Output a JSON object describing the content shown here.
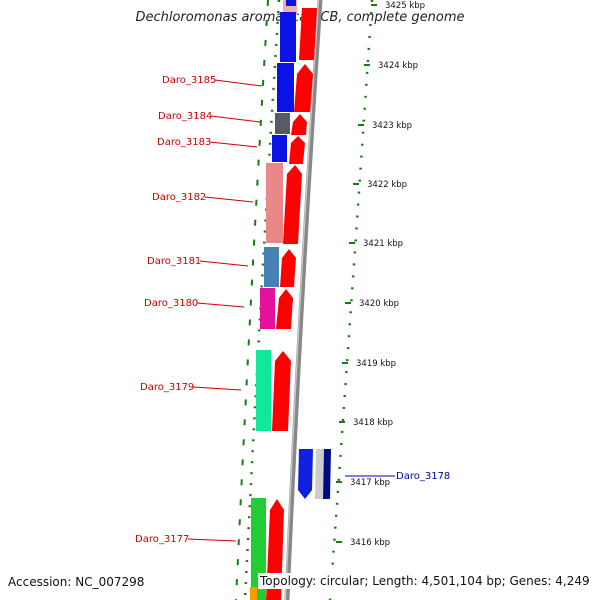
{
  "title": "Dechloromonas aromatica RCB, complete genome",
  "footer": {
    "accession": "Accession: NC_007298",
    "topology": "Topology: circular; Length: 4,501,104 bp; Genes: 4,249"
  },
  "scale_labels": [
    "3425 kbp",
    "3424 kbp",
    "3423 kbp",
    "3422 kbp",
    "3421 kbp",
    "3420 kbp",
    "3419 kbp",
    "3418 kbp",
    "3417 kbp",
    "3416 kbp"
  ],
  "genes": [
    {
      "label": "Daro_3185",
      "strand": "left",
      "color": "#0a12e6"
    },
    {
      "label": "Daro_3184",
      "strand": "left",
      "color": "#5a5a66"
    },
    {
      "label": "Daro_3183",
      "strand": "left",
      "color": "#0a12e6"
    },
    {
      "label": "Daro_3182",
      "strand": "left",
      "color": "#e88888"
    },
    {
      "label": "Daro_3181",
      "strand": "left",
      "color": "#4682b4"
    },
    {
      "label": "Daro_3180",
      "strand": "left",
      "color": "#e6119a"
    },
    {
      "label": "Daro_3179",
      "strand": "left",
      "color": "#11e89a"
    },
    {
      "label": "Daro_3178",
      "strand": "right",
      "color": "#1020e0"
    },
    {
      "label": "Daro_3177",
      "strand": "left",
      "color": "#22cc33"
    }
  ],
  "colors": {
    "left_label": "#cc0000",
    "right_label": "#0000aa",
    "cds": "#ff0000",
    "backbone": "#888888",
    "tick_mark": "#1a7a1a"
  }
}
